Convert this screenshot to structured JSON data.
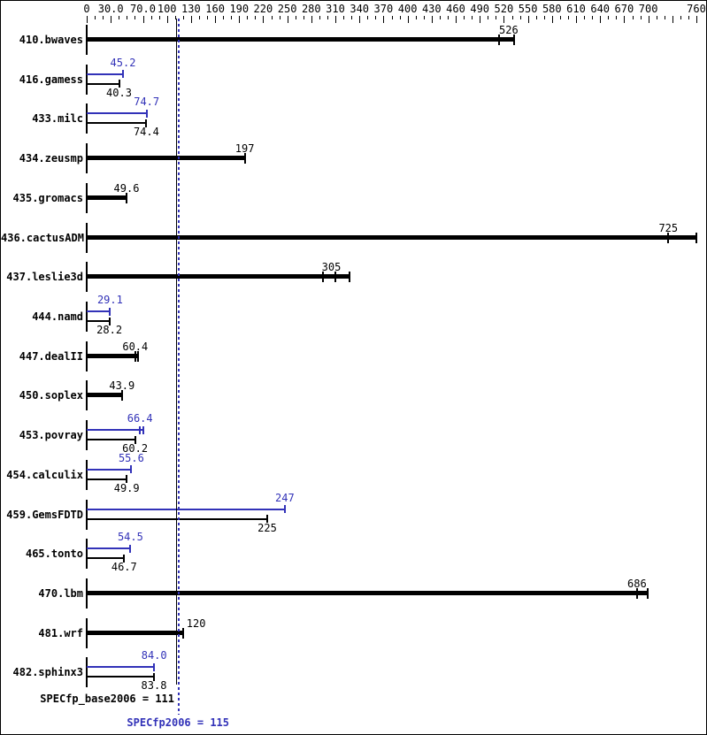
{
  "colors": {
    "base": "#000000",
    "peak": "#3232b8",
    "background": "#ffffff",
    "border": "#000000"
  },
  "summary": {
    "base_label": "SPECfp_base2006 = 111",
    "peak_label": "SPECfp2006 = 115"
  },
  "chart_data": {
    "type": "bar",
    "orientation": "horizontal",
    "title": "",
    "xlabel": "",
    "ylabel": "",
    "xlim": [
      0,
      760
    ],
    "grid": false,
    "axis": {
      "tick_step": 10,
      "major_ticks": [
        0,
        30,
        70,
        100,
        130,
        160,
        190,
        220,
        250,
        280,
        310,
        340,
        370,
        400,
        430,
        460,
        490,
        520,
        550,
        580,
        610,
        640,
        670,
        700,
        730,
        760
      ],
      "labels": [
        {
          "v": 0,
          "t": "0"
        },
        {
          "v": 30,
          "t": "30.0"
        },
        {
          "v": 70,
          "t": "70.0"
        },
        {
          "v": 100,
          "t": "100"
        },
        {
          "v": 130,
          "t": "130"
        },
        {
          "v": 160,
          "t": "160"
        },
        {
          "v": 190,
          "t": "190"
        },
        {
          "v": 220,
          "t": "220"
        },
        {
          "v": 250,
          "t": "250"
        },
        {
          "v": 280,
          "t": "280"
        },
        {
          "v": 310,
          "t": "310"
        },
        {
          "v": 340,
          "t": "340"
        },
        {
          "v": 370,
          "t": "370"
        },
        {
          "v": 400,
          "t": "400"
        },
        {
          "v": 430,
          "t": "430"
        },
        {
          "v": 460,
          "t": "460"
        },
        {
          "v": 490,
          "t": "490"
        },
        {
          "v": 520,
          "t": "520"
        },
        {
          "v": 550,
          "t": "550"
        },
        {
          "v": 580,
          "t": "580"
        },
        {
          "v": 610,
          "t": "610"
        },
        {
          "v": 640,
          "t": "640"
        },
        {
          "v": 670,
          "t": "670"
        },
        {
          "v": 700,
          "t": "700"
        },
        {
          "v": 760,
          "t": "760"
        }
      ]
    },
    "benchmarks": [
      {
        "name": "410.bwaves",
        "base": {
          "value": 526,
          "label": "526",
          "bar_end": 533,
          "run_ticks": [
            514
          ]
        }
      },
      {
        "name": "416.gamess",
        "peak": {
          "value": 45.2,
          "label": "45.2"
        },
        "base": {
          "value": 40.3,
          "label": "40.3"
        }
      },
      {
        "name": "433.milc",
        "peak": {
          "value": 74.7,
          "label": "74.7"
        },
        "base": {
          "value": 74.4,
          "label": "74.4"
        }
      },
      {
        "name": "434.zeusmp",
        "base": {
          "value": 197,
          "label": "197"
        }
      },
      {
        "name": "435.gromacs",
        "base": {
          "value": 49.6,
          "label": "49.6"
        }
      },
      {
        "name": "436.cactusADM",
        "base": {
          "value": 725,
          "label": "725",
          "bar_end": 760,
          "run_ticks": [
            725
          ]
        }
      },
      {
        "name": "437.leslie3d",
        "base": {
          "value": 305,
          "label": "305",
          "bar_end": 328,
          "run_ticks": [
            295,
            310
          ]
        }
      },
      {
        "name": "444.namd",
        "peak": {
          "value": 29.1,
          "label": "29.1"
        },
        "base": {
          "value": 28.2,
          "label": "28.2"
        }
      },
      {
        "name": "447.dealII",
        "base": {
          "value": 60.4,
          "label": "60.4",
          "bar_end": 64,
          "run_ticks": [
            60.4
          ]
        }
      },
      {
        "name": "450.soplex",
        "base": {
          "value": 43.9,
          "label": "43.9"
        }
      },
      {
        "name": "453.povray",
        "peak": {
          "value": 66.4,
          "label": "66.4",
          "bar_end": 70,
          "run_ticks": [
            66.4
          ]
        },
        "base": {
          "value": 60.2,
          "label": "60.2"
        }
      },
      {
        "name": "454.calculix",
        "peak": {
          "value": 55.6,
          "label": "55.6"
        },
        "base": {
          "value": 49.9,
          "label": "49.9"
        }
      },
      {
        "name": "459.GemsFDTD",
        "peak": {
          "value": 247,
          "label": "247"
        },
        "base": {
          "value": 225,
          "label": "225"
        }
      },
      {
        "name": "465.tonto",
        "peak": {
          "value": 54.5,
          "label": "54.5"
        },
        "base": {
          "value": 46.7,
          "label": "46.7"
        }
      },
      {
        "name": "470.lbm",
        "base": {
          "value": 686,
          "label": "686",
          "bar_end": 699,
          "run_ticks": [
            686
          ]
        }
      },
      {
        "name": "481.wrf",
        "base": {
          "value": 120,
          "label": "120",
          "label_anchor": "right-of-end"
        }
      },
      {
        "name": "482.sphinx3",
        "peak": {
          "value": 84,
          "label": "84.0"
        },
        "base": {
          "value": 83.8,
          "label": "83.8"
        }
      }
    ],
    "reference_lines": [
      {
        "value": 111,
        "style": "solid",
        "color": "#000000",
        "label": "SPECfp_base2006 = 111"
      },
      {
        "value": 115,
        "style": "dotted",
        "color": "#3232b8",
        "label": "SPECfp2006 = 115"
      }
    ],
    "legend_position": "none"
  }
}
